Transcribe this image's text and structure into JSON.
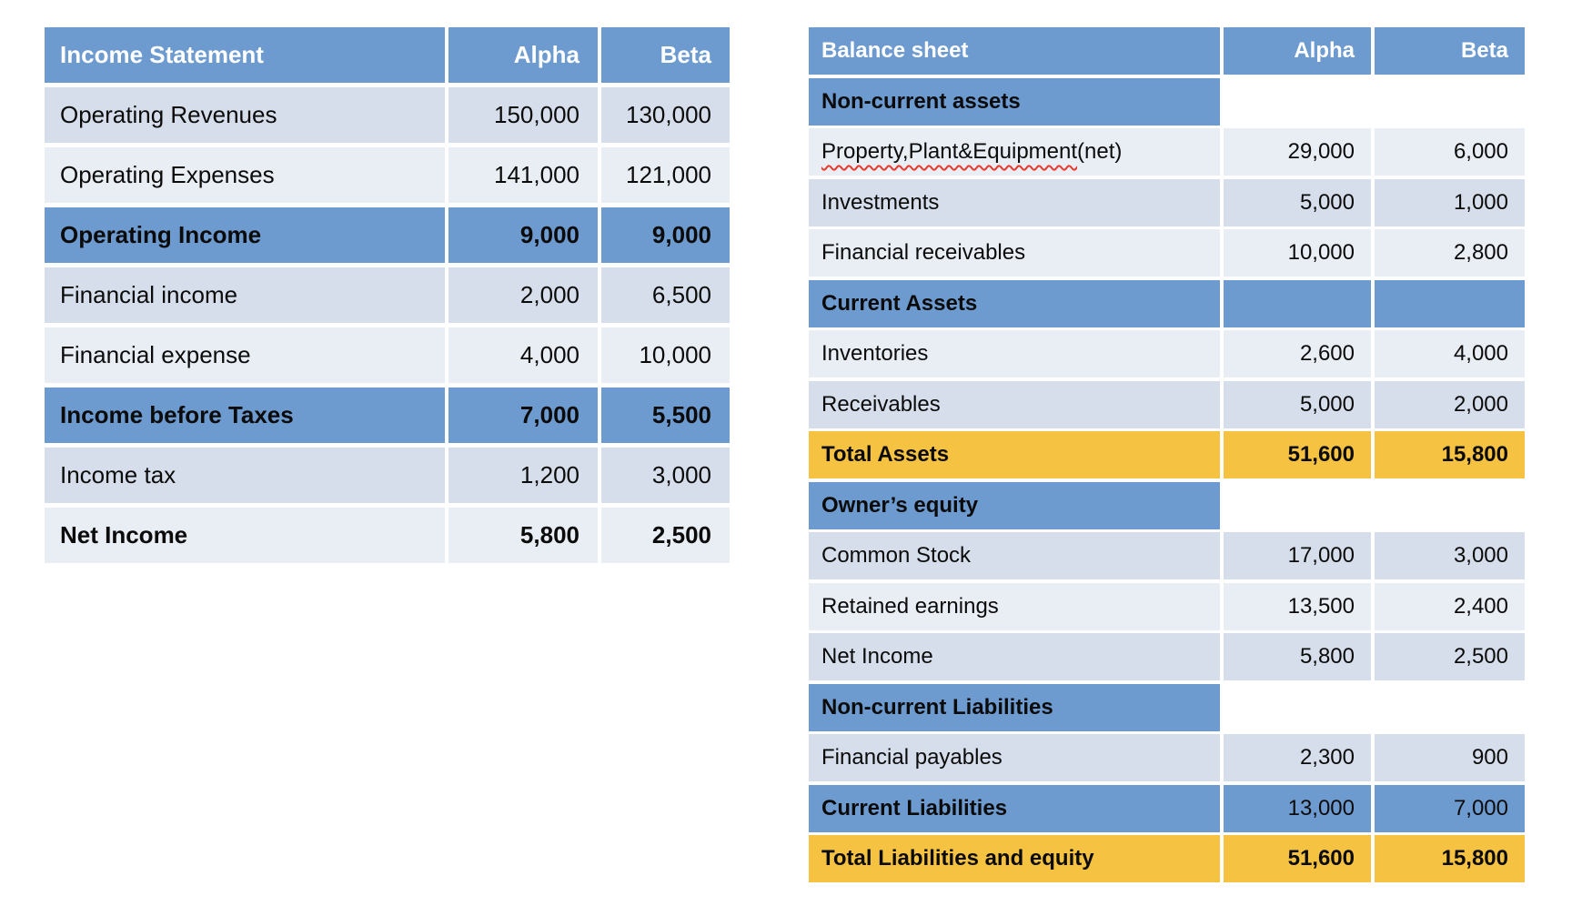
{
  "colors": {
    "header_blue": "#6d9bd0",
    "section_blue": "#6d9bd0",
    "band_dark": "#d6deeb",
    "band_light": "#e9edf4",
    "total_orange": "#f5c242",
    "header_text": "#ffffff",
    "body_text": "#0b0b0b",
    "spellcheck_red": "#e8392c",
    "canvas_background": "#ffffff"
  },
  "income_statement": {
    "title": "Income Statement",
    "columns": [
      "Alpha",
      "Beta"
    ],
    "rows": [
      {
        "label": "Operating Revenues",
        "alpha": "150,000",
        "beta": "130,000",
        "bg": "dark"
      },
      {
        "label": "Operating Expenses",
        "alpha": "141,000",
        "beta": "121,000",
        "bg": "light"
      },
      {
        "label": "Operating Income",
        "alpha": "9,000",
        "beta": "9,000",
        "bg": "blue",
        "bold": true
      },
      {
        "label": "Financial income",
        "alpha": "2,000",
        "beta": "6,500",
        "bg": "dark"
      },
      {
        "label": "Financial expense",
        "alpha": "4,000",
        "beta": "10,000",
        "bg": "light"
      },
      {
        "label": "Income before Taxes",
        "alpha": "7,000",
        "beta": "5,500",
        "bg": "blue",
        "bold": true
      },
      {
        "label": "Income tax",
        "alpha": "1,200",
        "beta": "3,000",
        "bg": "dark"
      },
      {
        "label": "Net Income",
        "alpha": "5,800",
        "beta": "2,500",
        "bg": "light",
        "bold": true
      }
    ]
  },
  "balance_sheet": {
    "title": "Balance sheet",
    "columns": [
      "Alpha",
      "Beta"
    ],
    "rows": [
      {
        "label": "Non-current assets",
        "type": "section"
      },
      {
        "label": "Property,Plant&Equipment (net)",
        "squiggle_part": "Property,Plant&Equipment",
        "plain_part": " (net)",
        "alpha": "29,000",
        "beta": "6,000",
        "bg": "light"
      },
      {
        "label": "Investments",
        "alpha": "5,000",
        "beta": "1,000",
        "bg": "dark"
      },
      {
        "label": "Financial receivables",
        "alpha": "10,000",
        "beta": "2,800",
        "bg": "light"
      },
      {
        "label": "Current Assets",
        "type": "section-cells"
      },
      {
        "label": "Inventories",
        "alpha": "2,600",
        "beta": "4,000",
        "bg": "light"
      },
      {
        "label": "Receivables",
        "alpha": "5,000",
        "beta": "2,000",
        "bg": "dark"
      },
      {
        "label": "Total Assets",
        "alpha": "51,600",
        "beta": "15,800",
        "bg": "orange",
        "bold": true
      },
      {
        "label": "Owner’s equity",
        "type": "section"
      },
      {
        "label": "Common Stock",
        "alpha": "17,000",
        "beta": "3,000",
        "bg": "dark"
      },
      {
        "label": "Retained earnings",
        "alpha": "13,500",
        "beta": "2,400",
        "bg": "light"
      },
      {
        "label": "Net Income",
        "alpha": "5,800",
        "beta": "2,500",
        "bg": "dark"
      },
      {
        "label": "Non-current Liabilities",
        "type": "section"
      },
      {
        "label": "Financial payables",
        "alpha": "2,300",
        "beta": "900",
        "bg": "dark"
      },
      {
        "label": "Current Liabilities",
        "alpha": "13,000",
        "beta": "7,000",
        "bg": "blue",
        "bold_label": true
      },
      {
        "label": "Total Liabilities and equity",
        "alpha": "51,600",
        "beta": "15,800",
        "bg": "orange",
        "bold": true
      }
    ]
  }
}
